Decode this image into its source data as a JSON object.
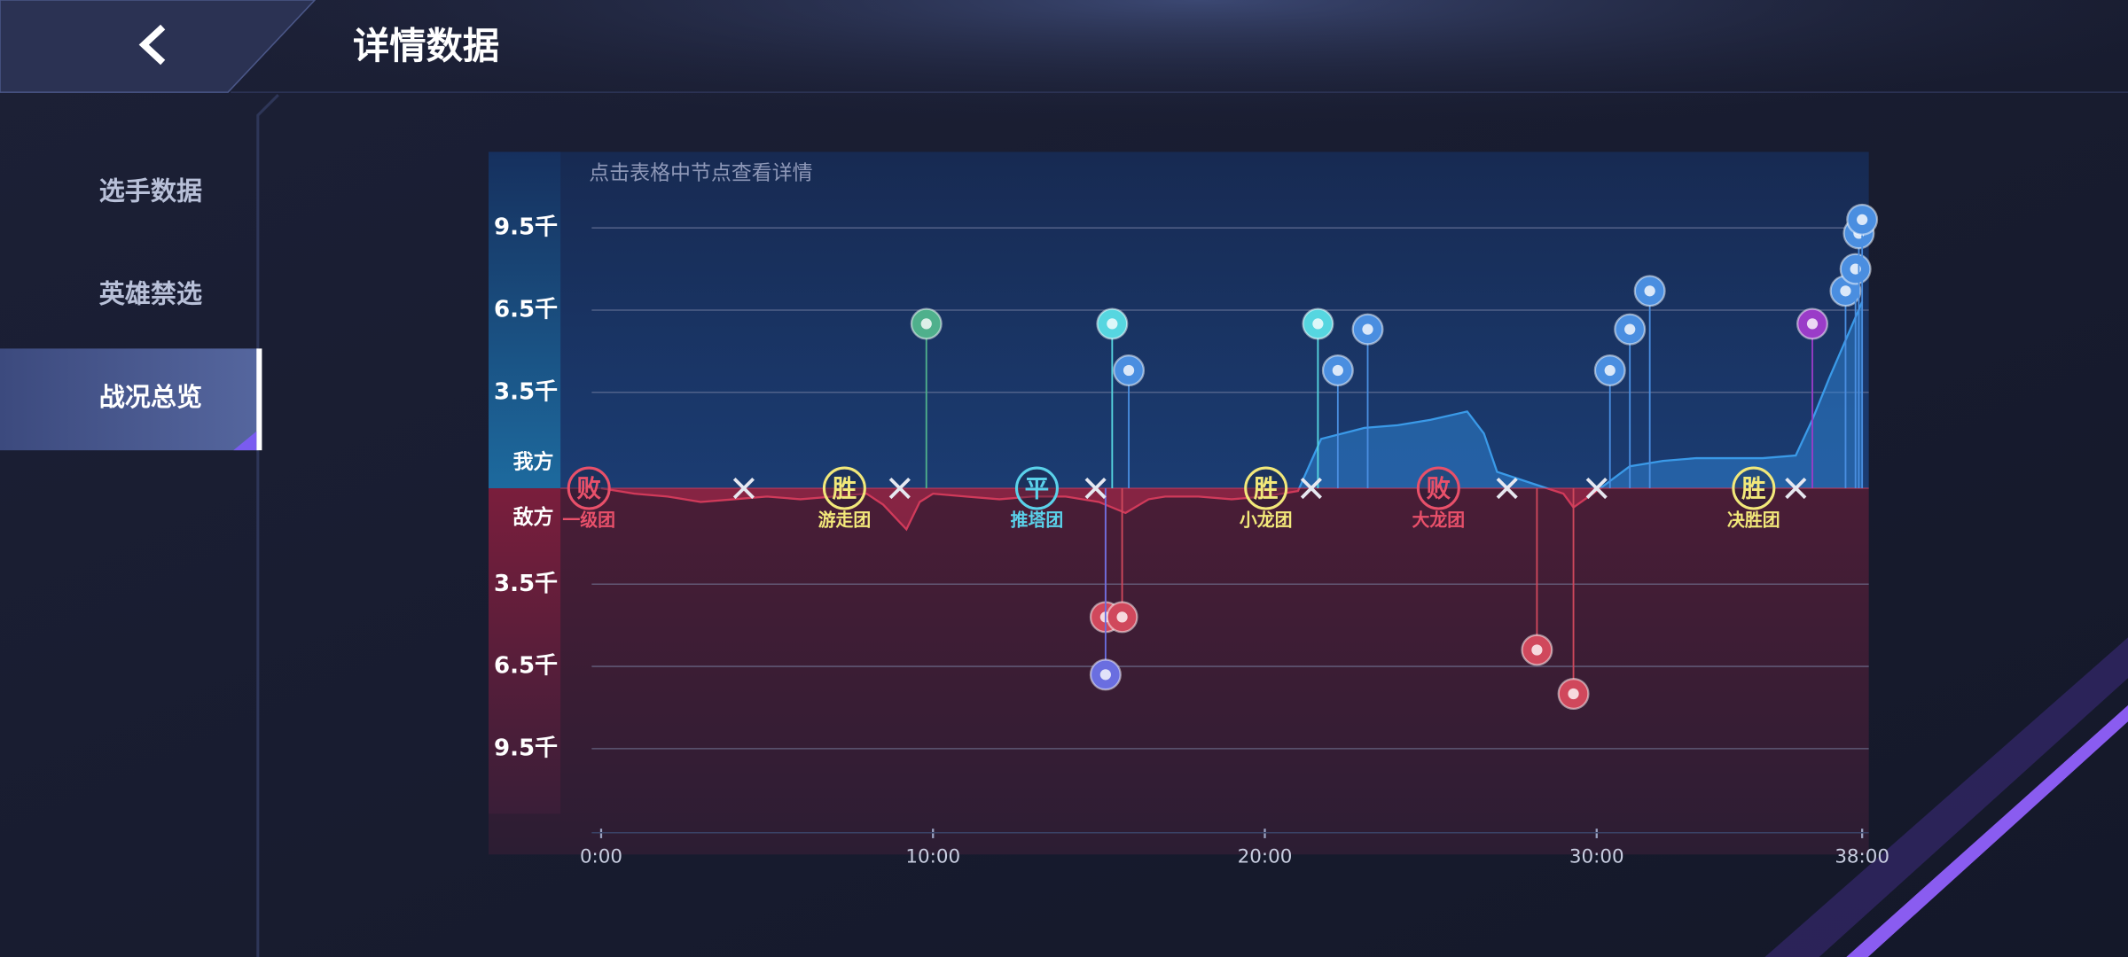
{
  "header": {
    "title": "详情数据"
  },
  "sidebar": {
    "tabs": [
      "选手数据",
      "英雄禁选",
      "战况总览"
    ],
    "active": 2
  },
  "chart": {
    "hint": "点击表格中节点查看详情",
    "side_labels": {
      "ours": "我方",
      "enemy": "敌方"
    },
    "xlim": [
      -1,
      38.2
    ],
    "ylim": [
      -12000,
      12000
    ],
    "xticks": [
      {
        "value": 0,
        "label": "0:00"
      },
      {
        "value": 10,
        "label": "10:00"
      },
      {
        "value": 20,
        "label": "20:00"
      },
      {
        "value": 30,
        "label": "30:00"
      },
      {
        "value": 38,
        "label": "38:00"
      }
    ],
    "yticks": [
      {
        "value": 9500,
        "label": "9.5千"
      },
      {
        "value": 6500,
        "label": "6.5千"
      },
      {
        "value": 3500,
        "label": "3.5千"
      },
      {
        "value": -3500,
        "label": "3.5千"
      },
      {
        "value": -6500,
        "label": "6.5千"
      },
      {
        "value": -9500,
        "label": "9.5千"
      }
    ],
    "gold_diff": {
      "x": [
        0,
        1,
        2,
        3,
        4,
        5,
        6,
        7,
        8,
        8.5,
        9.2,
        9.6,
        10,
        11,
        12,
        13,
        14,
        15,
        15.8,
        16.5,
        17,
        18,
        19,
        20,
        21,
        21.7,
        23,
        24,
        25,
        26.1,
        26.6,
        27,
        28,
        29,
        29.3,
        30,
        31,
        32,
        33,
        34,
        35,
        36,
        36.5,
        37,
        38
      ],
      "values": [
        0,
        -200,
        -300,
        -500,
        -400,
        -300,
        -400,
        -300,
        -200,
        -600,
        -1500,
        -500,
        -200,
        -300,
        -400,
        -300,
        -300,
        -500,
        -900,
        -400,
        -300,
        -300,
        -400,
        -300,
        -100,
        1800,
        2200,
        2300,
        2500,
        2800,
        2000,
        600,
        200,
        -200,
        -700,
        -100,
        800,
        1000,
        1100,
        1100,
        1100,
        1200,
        2500,
        4000,
        6800
      ]
    },
    "fights": [
      {
        "time": 0,
        "result": "败",
        "label": "一级团",
        "color": "#e8506a"
      },
      {
        "time": 7.7,
        "result": "胜",
        "label": "游走团",
        "color": "#f2e87a"
      },
      {
        "time": 13.5,
        "result": "平",
        "label": "推塔团",
        "color": "#5ad2ea"
      },
      {
        "time": 20.4,
        "result": "胜",
        "label": "小龙团",
        "color": "#f2e87a"
      },
      {
        "time": 25.6,
        "result": "败",
        "label": "大龙团",
        "color": "#e8506a"
      },
      {
        "time": 35.1,
        "result": "胜",
        "label": "决胜团",
        "color": "#f2e87a"
      }
    ],
    "kills": [
      4.3,
      9.0,
      14.9,
      21.4,
      27.3,
      30.0,
      36.0
    ],
    "objectives": [
      {
        "time": 9.8,
        "value": 6000,
        "color": "#4fb08c"
      },
      {
        "time": 15.4,
        "value": 6000,
        "color": "#56d6e0"
      },
      {
        "time": 15.9,
        "value": 4300,
        "color": "#4a8ee0"
      },
      {
        "time": 21.6,
        "value": 6000,
        "color": "#56d6e0"
      },
      {
        "time": 22.2,
        "value": 4300,
        "color": "#4a8ee0"
      },
      {
        "time": 23.1,
        "value": 5800,
        "color": "#4a8ee0"
      },
      {
        "time": 30.4,
        "value": 4300,
        "color": "#4a8ee0"
      },
      {
        "time": 31.0,
        "value": 5800,
        "color": "#4a8ee0"
      },
      {
        "time": 31.6,
        "value": 7200,
        "color": "#4a8ee0"
      },
      {
        "time": 36.5,
        "value": 6000,
        "color": "#9a3cc8"
      },
      {
        "time": 37.5,
        "value": 7200,
        "color": "#4a8ee0"
      },
      {
        "time": 37.8,
        "value": 8000,
        "color": "#4a8ee0"
      },
      {
        "time": 37.9,
        "value": 9300,
        "color": "#4a8ee0"
      },
      {
        "time": 38.0,
        "value": 9800,
        "color": "#4a8ee0"
      },
      {
        "time": 15.2,
        "value": -4700,
        "color": "#d0485c"
      },
      {
        "time": 15.7,
        "value": -4700,
        "color": "#d0485c"
      },
      {
        "time": 15.2,
        "value": -6800,
        "color": "#6a6ee0"
      },
      {
        "time": 28.2,
        "value": -5900,
        "color": "#d0485c"
      },
      {
        "time": 29.3,
        "value": -7500,
        "color": "#d0485c"
      }
    ]
  }
}
